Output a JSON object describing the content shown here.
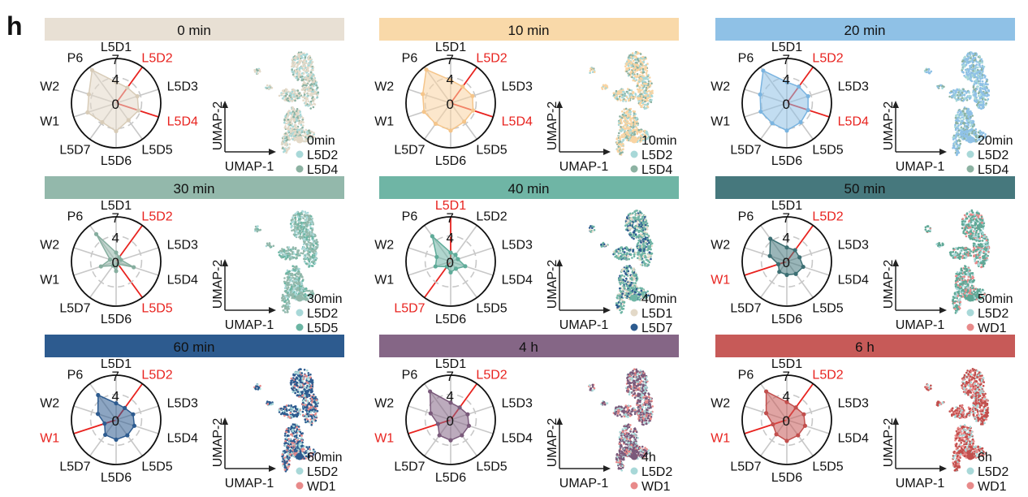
{
  "panel_letter": "h",
  "chart_data": {
    "type": "radar",
    "axes": [
      "L5D1",
      "L5D2",
      "L5D3",
      "L5D4",
      "L5D5",
      "L5D6",
      "L5D7",
      "W1",
      "W2",
      "P6"
    ],
    "range": [
      0,
      7
    ],
    "ticks": [
      "7",
      "4",
      "0"
    ],
    "tick_values": [
      7,
      4,
      0
    ],
    "umap_x_label": "UMAP-1",
    "umap_y_label": "UMAP-2",
    "panels": [
      {
        "title": "0 min",
        "header_color": "#e8e0d4",
        "fill_color": "#e3d9c8",
        "line_color": "#d8ccb8",
        "values": [
          3.3,
          3.0,
          3.5,
          3.7,
          3.3,
          4.4,
          3.7,
          4.7,
          4.5,
          6.4
        ],
        "highlight": [
          "L5D2",
          "L5D4"
        ],
        "legend": [
          {
            "label": "0min",
            "color": "#e3d9c8"
          },
          {
            "label": "L5D2",
            "color": "#a8d8d8"
          },
          {
            "label": "L5D4",
            "color": "#8cb2a2"
          }
        ]
      },
      {
        "title": "10 min",
        "header_color": "#f9d9a9",
        "fill_color": "#f9d4a3",
        "line_color": "#f5c58a",
        "values": [
          3.6,
          3.2,
          3.6,
          3.7,
          3.6,
          4.3,
          4.0,
          4.4,
          4.6,
          6.5
        ],
        "highlight": [
          "L5D2",
          "L5D4"
        ],
        "legend": [
          {
            "label": "10min",
            "color": "#f9d4a3"
          },
          {
            "label": "L5D2",
            "color": "#a8d8d8"
          },
          {
            "label": "L5D4",
            "color": "#8cb2a2"
          }
        ]
      },
      {
        "title": "20 min",
        "header_color": "#8fc1e6",
        "fill_color": "#8fc1e6",
        "line_color": "#7ab4e0",
        "values": [
          3.3,
          3.2,
          3.5,
          3.5,
          3.7,
          4.3,
          3.9,
          4.3,
          4.4,
          6.3
        ],
        "highlight": [
          "L5D2",
          "L5D4"
        ],
        "legend": [
          {
            "label": "20min",
            "color": "#8fc1e6"
          },
          {
            "label": "L5D2",
            "color": "#a8d8d8"
          },
          {
            "label": "L5D4",
            "color": "#8cb2a2"
          }
        ]
      },
      {
        "title": "30 min",
        "header_color": "#93b8ab",
        "fill_color": "#93b8ab",
        "line_color": "#86ae9f",
        "values": [
          1.4,
          0.8,
          0.8,
          2.9,
          0.5,
          1.5,
          0.8,
          2.5,
          1.0,
          5.3
        ],
        "highlight": [
          "L5D2",
          "L5D5"
        ],
        "legend": [
          {
            "label": "30min",
            "color": "#93b8ab"
          },
          {
            "label": "L5D2",
            "color": "#a8d8d8"
          },
          {
            "label": "L5D5",
            "color": "#6bb5a3"
          }
        ]
      },
      {
        "title": "40 min",
        "header_color": "#6fb5a5",
        "fill_color": "#6fb5a5",
        "line_color": "#5fab99",
        "values": [
          1.4,
          1.3,
          1.2,
          2.4,
          1.4,
          1.7,
          1.0,
          2.5,
          2.3,
          4.9
        ],
        "highlight": [
          "L5D1",
          "L5D7"
        ],
        "legend": [
          {
            "label": "40min",
            "color": "#6fb5a5"
          },
          {
            "label": "L5D1",
            "color": "#e3d9c8"
          },
          {
            "label": "L5D7",
            "color": "#2d5b8f"
          }
        ]
      },
      {
        "title": "50 min",
        "header_color": "#46787d",
        "fill_color": "#46787d",
        "line_color": "#3b6e72",
        "values": [
          2.2,
          2.2,
          2.1,
          2.7,
          2.4,
          2.1,
          2.0,
          1.4,
          2.8,
          4.4
        ],
        "highlight": [
          "L5D2",
          "W1"
        ],
        "legend": [
          {
            "label": "50min",
            "color": "#5fa896"
          },
          {
            "label": "L5D2",
            "color": "#a8d8d8"
          },
          {
            "label": "WD1",
            "color": "#e88a8a"
          }
        ]
      },
      {
        "title": "60 min",
        "header_color": "#2d5b8f",
        "fill_color": "#2d5b8f",
        "line_color": "#2d5b8f",
        "values": [
          2.6,
          2.3,
          2.8,
          3.0,
          3.0,
          3.1,
          2.9,
          1.9,
          3.0,
          4.8
        ],
        "highlight": [
          "L5D2",
          "W1"
        ],
        "legend": [
          {
            "label": "60min",
            "color": "#2d5b8f"
          },
          {
            "label": "L5D2",
            "color": "#a8d8d8"
          },
          {
            "label": "WD1",
            "color": "#e88a8a"
          }
        ]
      },
      {
        "title": "4 h",
        "header_color": "#856686",
        "fill_color": "#856686",
        "line_color": "#7a5a7b",
        "values": [
          2.7,
          2.4,
          2.8,
          3.0,
          3.0,
          3.2,
          3.0,
          2.1,
          3.3,
          5.5
        ],
        "highlight": [
          "L5D2",
          "W1"
        ],
        "legend": [
          {
            "label": "4h",
            "color": "#7a5a7b"
          },
          {
            "label": "L5D2",
            "color": "#a8d8d8"
          },
          {
            "label": "WD1",
            "color": "#e88a8a"
          }
        ]
      },
      {
        "title": "6 h",
        "header_color": "#c75a58",
        "fill_color": "#c75a58",
        "line_color": "#c24f4d",
        "values": [
          2.8,
          2.4,
          2.8,
          3.0,
          3.0,
          3.3,
          2.8,
          2.3,
          3.4,
          5.5
        ],
        "highlight": [
          "L5D2",
          "W1"
        ],
        "legend": [
          {
            "label": "6h",
            "color": "#c24f4d"
          },
          {
            "label": "L5D2",
            "color": "#a8d8d8"
          },
          {
            "label": "WD1",
            "color": "#e88a8a"
          }
        ]
      }
    ]
  },
  "colors": {
    "highlight": "#e8231f",
    "grid": "#c8c8c8",
    "outer_ring": "#111111"
  }
}
